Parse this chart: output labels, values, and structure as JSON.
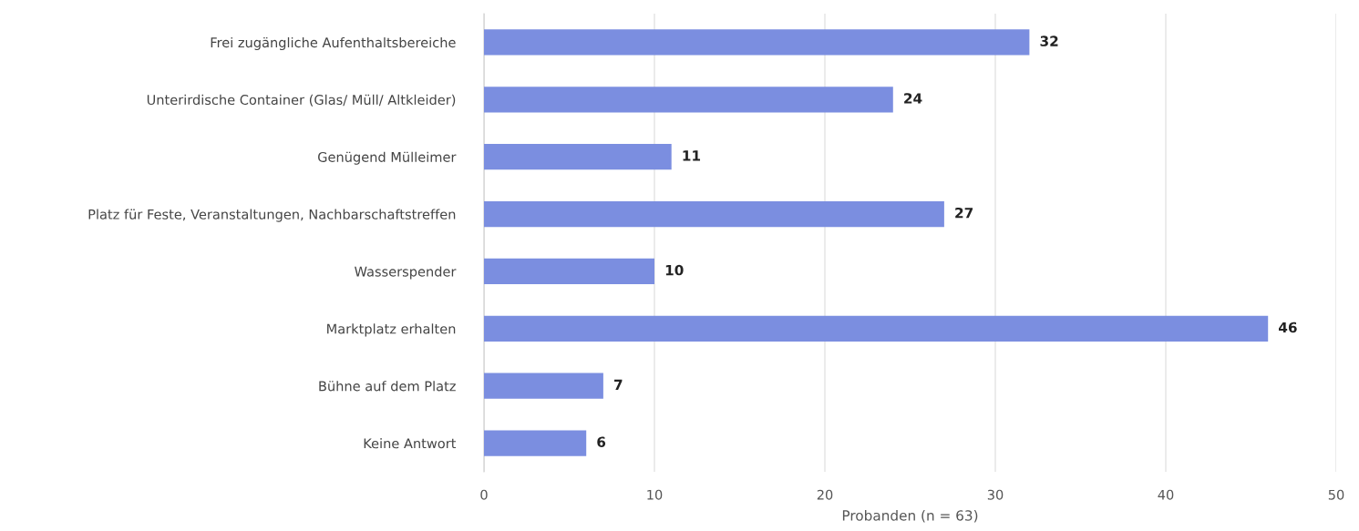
{
  "chart_data": {
    "type": "bar",
    "orientation": "horizontal",
    "xlabel": "Probanden (n = 63)",
    "categories": [
      "Frei zugängliche Aufenthaltsbereiche",
      "Unterirdische Container (Glas/ Müll/ Altkleider)",
      "Genügend Mülleimer",
      "Platz für Feste, Veranstaltungen, Nachbarschaftstreffen",
      "Wasserspender",
      "Marktplatz erhalten",
      "Bühne auf dem Platz",
      "Keine Antwort"
    ],
    "values": [
      32,
      24,
      11,
      27,
      10,
      46,
      7,
      6
    ],
    "color": "#7b8ee0",
    "xlim": [
      0,
      50
    ],
    "xticks": [
      0,
      10,
      20,
      30,
      40,
      50
    ],
    "grid": "x",
    "data_labels": true
  }
}
